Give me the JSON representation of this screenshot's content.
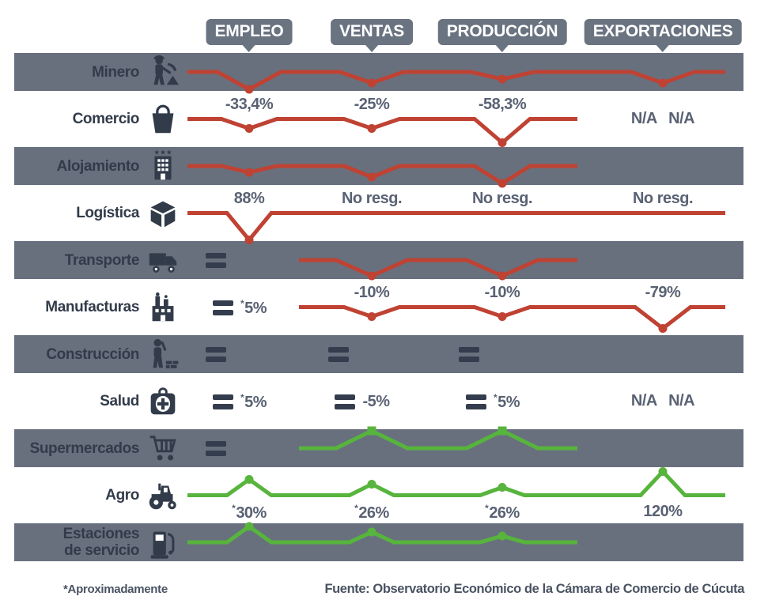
{
  "header": {
    "columns": [
      {
        "id": "empleo",
        "label": "EMPLEO"
      },
      {
        "id": "ventas",
        "label": "VENTAS"
      },
      {
        "id": "produccion",
        "label": "PRODUCCIÓN"
      },
      {
        "id": "exportaciones",
        "label": "EXPORTACIONES"
      }
    ]
  },
  "footer": {
    "note": "*Aproximadamente",
    "source": "Fuente: Observatorio Económico de la Cámara de Comercio de Cúcuta"
  },
  "colors": {
    "band": "#68707e",
    "navy": "#323b4a",
    "red": "#bf4233",
    "green": "#57b43c",
    "value_text": "#596273",
    "badge_bg": "#6a7380",
    "badge_text": "#ffffff"
  },
  "chart_data": {
    "type": "line",
    "title": "",
    "description": "Impact by economic sector across Empleo, Ventas, Producción and Exportaciones; red dips = decrease, green peaks = increase, equals sign = no change.",
    "columns": [
      "EMPLEO",
      "VENTAS",
      "PRODUCCIÓN",
      "EXPORTACIONES"
    ],
    "rows": [
      {
        "id": "minero",
        "sector": "Minero",
        "label_lines": [
          "Minero"
        ],
        "icon": "miner-icon",
        "band": true,
        "line_color": "red",
        "marker": "circle",
        "hw": 40,
        "cells": [
          {
            "trend": "dip",
            "mag": 22
          },
          {
            "trend": "dip",
            "mag": 14
          },
          {
            "trend": "dip",
            "mag": 9
          },
          {
            "trend": "dip",
            "mag": 14
          }
        ]
      },
      {
        "id": "comercio",
        "sector": "Comercio",
        "label_lines": [
          "Comercio"
        ],
        "icon": "shopping-bag-icon",
        "band": false,
        "line_color": "red",
        "marker": "circle",
        "hw": 35,
        "cells": [
          {
            "trend": "dip",
            "mag": 12,
            "value": "-33,4%",
            "value_pos": "above"
          },
          {
            "trend": "dip",
            "mag": 12,
            "value": "-25%",
            "value_pos": "above"
          },
          {
            "trend": "dip",
            "mag": 30,
            "value": "-58,3%",
            "value_pos": "above"
          },
          {
            "trend": "na",
            "value": "N/A N/A"
          }
        ]
      },
      {
        "id": "alojamiento",
        "sector": "Alojamiento",
        "label_lines": [
          "Alojamiento"
        ],
        "icon": "hotel-icon",
        "band": true,
        "line_color": "red",
        "marker": "circle",
        "hw": 35,
        "cells": [
          {
            "trend": "dip",
            "mag": 8
          },
          {
            "trend": "dip",
            "mag": 14
          },
          {
            "trend": "dip",
            "mag": 22
          },
          {
            "trend": "none"
          }
        ]
      },
      {
        "id": "logistica",
        "sector": "Logística",
        "label_lines": [
          "Logística"
        ],
        "icon": "package-icon",
        "band": false,
        "line_color": "red",
        "marker": "circle",
        "hw": 28,
        "cells": [
          {
            "trend": "dip",
            "mag": 34,
            "value": "88%",
            "value_pos": "above"
          },
          {
            "trend": "flat",
            "value": "No resg.",
            "value_pos": "above"
          },
          {
            "trend": "flat",
            "value": "No resg.",
            "value_pos": "above"
          },
          {
            "trend": "flat",
            "value": "No resg.",
            "value_pos": "above"
          }
        ]
      },
      {
        "id": "transporte",
        "sector": "Transporte",
        "label_lines": [
          "Transporte"
        ],
        "icon": "truck-icon",
        "band": true,
        "line_color": "red",
        "marker": "circle",
        "hw": 45,
        "cells": [
          {
            "trend": "equal"
          },
          {
            "trend": "dip",
            "mag": 20
          },
          {
            "trend": "dip",
            "mag": 20
          },
          {
            "trend": "none"
          }
        ]
      },
      {
        "id": "manufacturas",
        "sector": "Manufacturas",
        "label_lines": [
          "Manufacturas"
        ],
        "icon": "factory-icon",
        "band": false,
        "line_color": "red",
        "marker": "circle",
        "hw": 35,
        "cells": [
          {
            "trend": "equal",
            "value": "*5%"
          },
          {
            "trend": "dip",
            "mag": 12,
            "value": "-10%",
            "value_pos": "above"
          },
          {
            "trend": "dip",
            "mag": 12,
            "value": "-10%",
            "value_pos": "above"
          },
          {
            "trend": "dip",
            "mag": 27,
            "value": "-79%",
            "value_pos": "above"
          }
        ]
      },
      {
        "id": "construccion",
        "sector": "Construcción",
        "label_lines": [
          "Construcción"
        ],
        "icon": "construction-worker-icon",
        "band": true,
        "line_color": null,
        "marker": "circle",
        "hw": 38,
        "cells": [
          {
            "trend": "equal"
          },
          {
            "trend": "equal"
          },
          {
            "trend": "equal"
          },
          {
            "trend": "none"
          }
        ]
      },
      {
        "id": "salud",
        "sector": "Salud",
        "label_lines": [
          "Salud"
        ],
        "icon": "first-aid-kit-icon",
        "band": false,
        "line_color": null,
        "marker": "circle",
        "hw": 38,
        "cells": [
          {
            "trend": "equal",
            "value": "*5%"
          },
          {
            "trend": "equal",
            "value": "-5%"
          },
          {
            "trend": "equal",
            "value": "*5%"
          },
          {
            "trend": "na",
            "value": "N/A N/A"
          }
        ]
      },
      {
        "id": "supermercados",
        "sector": "Supermercados",
        "label_lines": [
          "Supermercados"
        ],
        "icon": "shopping-cart-icon",
        "band": true,
        "line_color": "green",
        "marker": "square",
        "hw": 45,
        "cells": [
          {
            "trend": "equal"
          },
          {
            "trend": "peak",
            "mag": 22
          },
          {
            "trend": "peak",
            "mag": 22
          },
          {
            "trend": "none"
          }
        ]
      },
      {
        "id": "agro",
        "sector": "Agro",
        "label_lines": [
          "Agro"
        ],
        "icon": "tractor-icon",
        "band": false,
        "line_color": "green",
        "marker": "circle",
        "hw": 28,
        "cells": [
          {
            "trend": "peak",
            "mag": 20,
            "value": "*30%",
            "value_pos": "below"
          },
          {
            "trend": "peak",
            "mag": 14,
            "value": "*26%",
            "value_pos": "below"
          },
          {
            "trend": "peak",
            "mag": 10,
            "value": "*26%",
            "value_pos": "below"
          },
          {
            "trend": "peak",
            "mag": 30,
            "value": "120%",
            "value_pos": "below"
          }
        ]
      },
      {
        "id": "estaciones-servicio",
        "sector": "Estaciones de servicio",
        "label_lines": [
          "Estaciones",
          "de servicio"
        ],
        "icon": "fuel-pump-icon",
        "band": true,
        "line_color": "green",
        "marker": "circle",
        "hw": 28,
        "cells": [
          {
            "trend": "peak",
            "mag": 20
          },
          {
            "trend": "peak",
            "mag": 13
          },
          {
            "trend": "peak",
            "mag": 8
          },
          {
            "trend": "none"
          }
        ]
      }
    ]
  }
}
